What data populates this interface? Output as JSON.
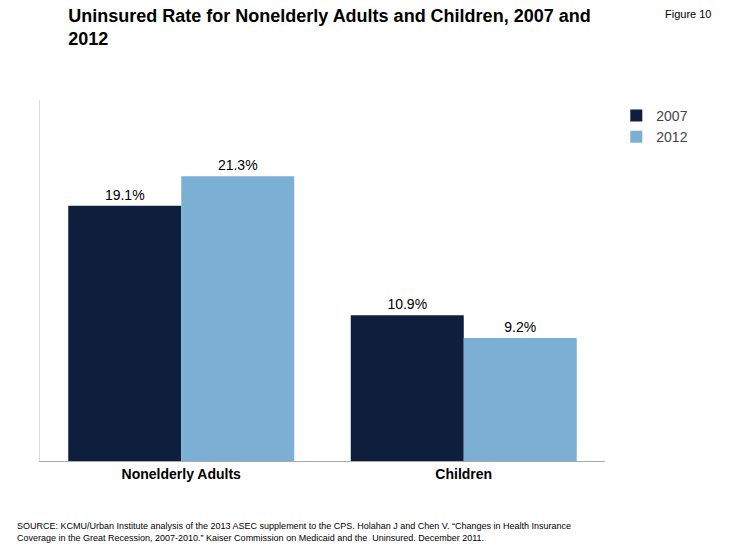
{
  "chart_data": {
    "type": "bar",
    "title": "Uninsured Rate for Nonelderly Adults and Children, 2007 and\n2012",
    "categories": [
      "Nonelderly Adults",
      "Children"
    ],
    "series": [
      {
        "name": "2007",
        "color": "#0d1f3c",
        "values": [
          19.1,
          10.9
        ],
        "value_labels": [
          "19.1%",
          "10.9%"
        ]
      },
      {
        "name": "2012",
        "color": "#7bafd4",
        "values": [
          21.3,
          9.2
        ],
        "value_labels": [
          "21.3%",
          "9.2%"
        ]
      }
    ],
    "ylim": [
      0,
      27
    ],
    "yticks": [],
    "tick_labels": "x",
    "data_labels": true,
    "grid": false,
    "legend": "right",
    "annotations": [
      "Figure 10",
      "SOURCE: KCMU/Urban Institute analysis of the 2013 ASEC supplement to the CPS. Holahan J and Chen V. “Changes in Health Insurance\nCoverage in the Great Recession, 2007-2010.” Kaiser Commission on Medicaid and the  Uninsured. December 2011."
    ]
  }
}
